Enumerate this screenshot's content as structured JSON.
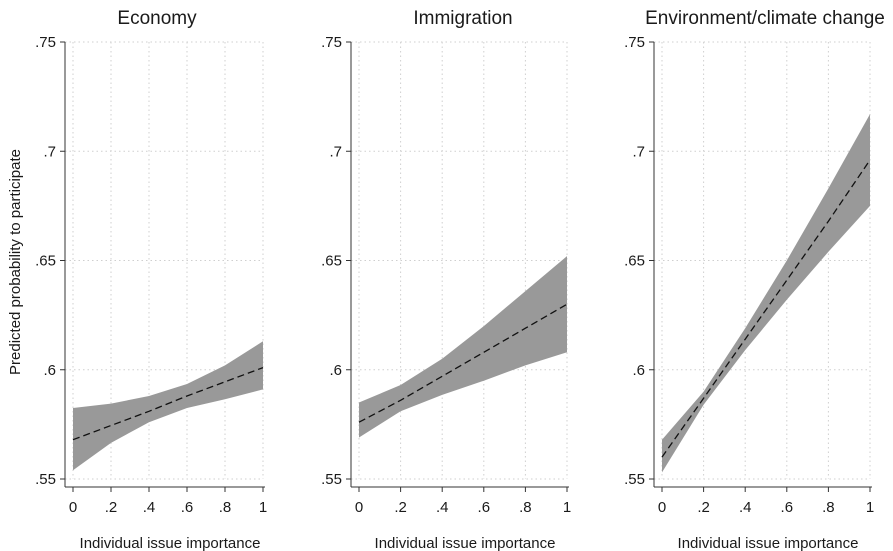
{
  "figure": {
    "ylabel": "Predicted probability to participate"
  },
  "chart_data": [
    {
      "type": "line",
      "title": "Economy",
      "xlabel": "Individual issue importance",
      "ylabel": "Predicted probability to participate",
      "xlim": [
        0,
        1
      ],
      "ylim": [
        0.55,
        0.75
      ],
      "x_ticks": [
        0,
        0.2,
        0.4,
        0.6,
        0.8,
        1
      ],
      "x_tick_labels": [
        "0",
        ".2",
        ".4",
        ".6",
        ".8",
        "1"
      ],
      "y_ticks": [
        0.55,
        0.6,
        0.65,
        0.7,
        0.75
      ],
      "y_tick_labels": [
        ".55",
        ".6",
        ".65",
        ".7",
        ".75"
      ],
      "grid": true,
      "series": [
        {
          "x": [
            0,
            0.2,
            0.4,
            0.6,
            0.8,
            1
          ],
          "y": [
            0.568,
            0.5745,
            0.581,
            0.588,
            0.5945,
            0.601
          ],
          "lower": [
            0.554,
            0.5665,
            0.576,
            0.5825,
            0.5865,
            0.591
          ],
          "upper": [
            0.5825,
            0.5845,
            0.588,
            0.5935,
            0.602,
            0.613
          ]
        }
      ]
    },
    {
      "type": "line",
      "title": "Immigration",
      "xlabel": "Individual issue importance",
      "xlim": [
        0,
        1
      ],
      "ylim": [
        0.55,
        0.75
      ],
      "x_ticks": [
        0,
        0.2,
        0.4,
        0.6,
        0.8,
        1
      ],
      "x_tick_labels": [
        "0",
        ".2",
        ".4",
        ".6",
        ".8",
        "1"
      ],
      "y_ticks": [
        0.55,
        0.6,
        0.65,
        0.7,
        0.75
      ],
      "y_tick_labels": [
        ".55",
        ".6",
        ".65",
        ".7",
        ".75"
      ],
      "grid": true,
      "series": [
        {
          "x": [
            0,
            0.2,
            0.4,
            0.6,
            0.8,
            1
          ],
          "y": [
            0.576,
            0.586,
            0.597,
            0.608,
            0.619,
            0.63
          ],
          "lower": [
            0.569,
            0.581,
            0.5885,
            0.595,
            0.602,
            0.608
          ],
          "upper": [
            0.585,
            0.593,
            0.605,
            0.62,
            0.636,
            0.652
          ]
        }
      ]
    },
    {
      "type": "line",
      "title": "Environment/climate change",
      "xlabel": "Individual issue importance",
      "xlim": [
        0,
        1
      ],
      "ylim": [
        0.55,
        0.75
      ],
      "x_ticks": [
        0,
        0.2,
        0.4,
        0.6,
        0.8,
        1
      ],
      "x_tick_labels": [
        "0",
        ".2",
        ".4",
        ".6",
        ".8",
        "1"
      ],
      "y_ticks": [
        0.55,
        0.6,
        0.65,
        0.7,
        0.75
      ],
      "y_tick_labels": [
        ".55",
        ".6",
        ".65",
        ".7",
        ".75"
      ],
      "grid": true,
      "series": [
        {
          "x": [
            0,
            0.2,
            0.4,
            0.6,
            0.8,
            1
          ],
          "y": [
            0.56,
            0.587,
            0.614,
            0.641,
            0.668,
            0.696
          ],
          "lower": [
            0.553,
            0.584,
            0.609,
            0.632,
            0.654,
            0.675
          ],
          "upper": [
            0.568,
            0.59,
            0.619,
            0.65,
            0.683,
            0.717
          ]
        }
      ]
    }
  ]
}
